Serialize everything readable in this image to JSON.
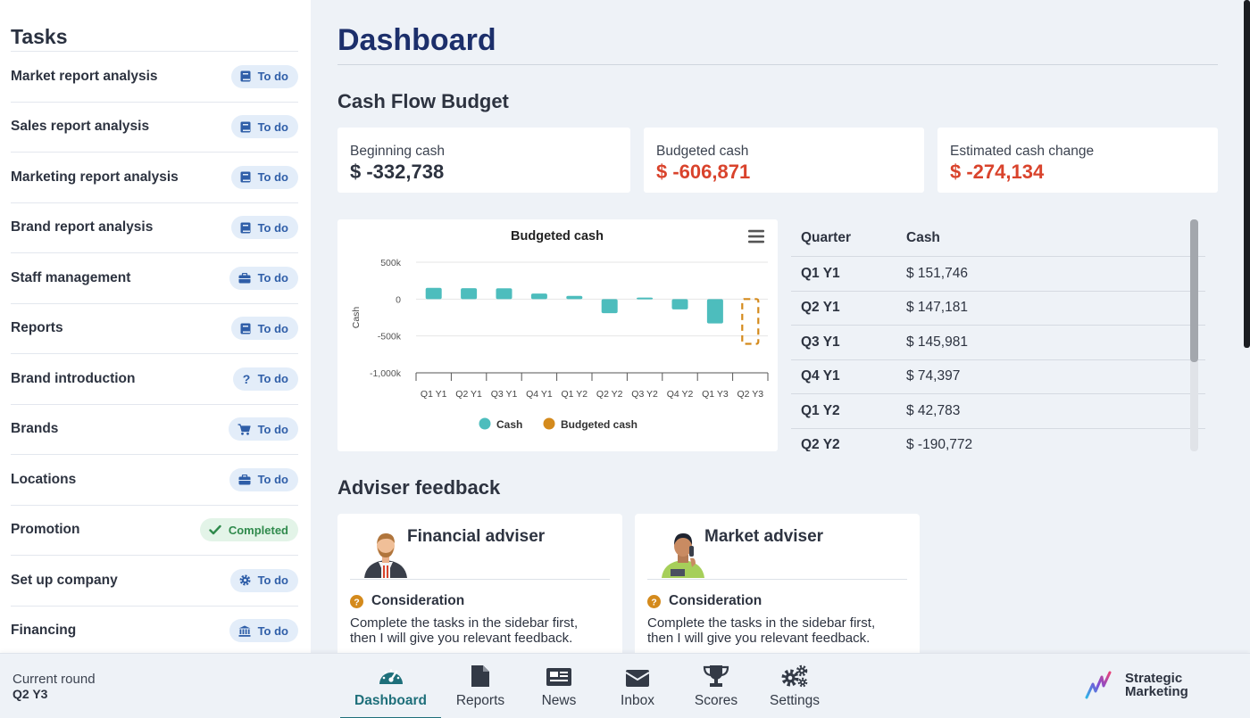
{
  "sidebar": {
    "title": "Tasks",
    "items": [
      {
        "label": "Market report analysis",
        "status": "To do",
        "icon": "book-icon"
      },
      {
        "label": "Sales report analysis",
        "status": "To do",
        "icon": "book-icon"
      },
      {
        "label": "Marketing report analysis",
        "status": "To do",
        "icon": "book-icon"
      },
      {
        "label": "Brand report analysis",
        "status": "To do",
        "icon": "book-icon"
      },
      {
        "label": "Staff management",
        "status": "To do",
        "icon": "briefcase-icon"
      },
      {
        "label": "Reports",
        "status": "To do",
        "icon": "book-icon"
      },
      {
        "label": "Brand introduction",
        "status": "To do",
        "icon": "question-icon"
      },
      {
        "label": "Brands",
        "status": "To do",
        "icon": "cart-icon"
      },
      {
        "label": "Locations",
        "status": "To do",
        "icon": "briefcase-icon"
      },
      {
        "label": "Promotion",
        "status": "Completed",
        "icon": "check-icon"
      },
      {
        "label": "Set up company",
        "status": "To do",
        "icon": "gear-icon"
      },
      {
        "label": "Financing",
        "status": "To do",
        "icon": "bank-icon"
      }
    ]
  },
  "main": {
    "title": "Dashboard",
    "cash_flow": {
      "title": "Cash Flow Budget",
      "stats": [
        {
          "label": "Beginning cash",
          "value": "$ -332,738"
        },
        {
          "label": "Budgeted cash",
          "value": "$ -606,871"
        },
        {
          "label": "Estimated cash change",
          "value": "$ -274,134"
        }
      ]
    },
    "table": {
      "headers": [
        "Quarter",
        "Cash"
      ],
      "rows": [
        [
          "Q1 Y1",
          "$ 151,746"
        ],
        [
          "Q2 Y1",
          "$ 147,181"
        ],
        [
          "Q3 Y1",
          "$ 145,981"
        ],
        [
          "Q4 Y1",
          "$ 74,397"
        ],
        [
          "Q1 Y2",
          "$ 42,783"
        ],
        [
          "Q2 Y2",
          "$ -190,772"
        ]
      ]
    },
    "advisers": {
      "title": "Adviser feedback",
      "items": [
        {
          "name": "Financial adviser",
          "heading": "Consideration",
          "text_line1": "Complete the tasks in the sidebar first,",
          "text_line2": "then I will give you relevant feedback."
        },
        {
          "name": "Market adviser",
          "heading": "Consideration",
          "text_line1": "Complete the tasks in the sidebar first,",
          "text_line2": "then I will give you relevant feedback."
        }
      ]
    }
  },
  "chart_data": {
    "type": "bar",
    "title": "Budgeted cash",
    "xlabel": "",
    "ylabel": "Cash",
    "ylim": [
      -1000000,
      500000
    ],
    "yticks": [
      500000,
      0,
      -500000,
      -1000000
    ],
    "ytick_labels": [
      "500k",
      "0",
      "-500k",
      "-1,000k"
    ],
    "categories": [
      "Q1 Y1",
      "Q2 Y1",
      "Q3 Y1",
      "Q4 Y1",
      "Q1 Y2",
      "Q2 Y2",
      "Q3 Y2",
      "Q4 Y2",
      "Q1 Y3",
      "Q2 Y3"
    ],
    "series": [
      {
        "name": "Cash",
        "color": "#4dbdbd",
        "values": [
          151746,
          147181,
          145981,
          74397,
          42783,
          -190772,
          20000,
          -140000,
          -330000,
          null
        ]
      },
      {
        "name": "Budgeted cash",
        "color": "#d48a1c",
        "values": [
          null,
          null,
          null,
          null,
          null,
          null,
          null,
          null,
          null,
          -606871
        ]
      }
    ],
    "legend_position": "bottom",
    "grid": true
  },
  "bottombar": {
    "round_label": "Current round",
    "round_value": "Q2 Y3",
    "nav": [
      {
        "label": "Dashboard",
        "icon": "speedometer-icon"
      },
      {
        "label": "Reports",
        "icon": "document-icon"
      },
      {
        "label": "News",
        "icon": "newspaper-icon"
      },
      {
        "label": "Inbox",
        "icon": "envelope-icon"
      },
      {
        "label": "Scores",
        "icon": "trophy-icon"
      },
      {
        "label": "Settings",
        "icon": "gears-icon"
      }
    ],
    "brand_line1": "Strategic",
    "brand_line2": "Marketing"
  },
  "colors": {
    "accent": "#1e6f7a",
    "title_navy": "#1c2f6b",
    "negative": "#d9432c",
    "badge_todo": "#2f5ea8",
    "badge_done": "#2f8a4c"
  }
}
